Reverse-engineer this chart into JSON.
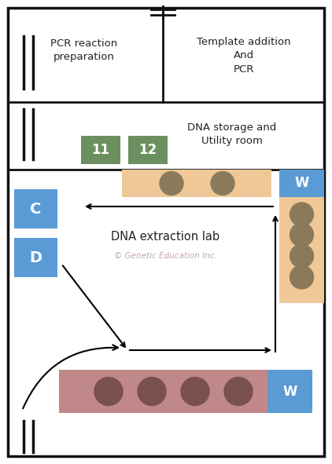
{
  "fig_width": 4.22,
  "fig_height": 5.91,
  "bg_color": "#ffffff",
  "green_box_color": "#6b8f5e",
  "blue_box_color": "#5b9bd5",
  "peach_bench_color": "#f0c898",
  "rose_bench_color": "#c08888",
  "circle_color_peach": "#8b7a5a",
  "circle_color_rose": "#7a5050",
  "text_watermark": "© Genetic Education Inc.",
  "text_watermark_color": "#c0a8a8",
  "label_C": "C",
  "label_D": "D",
  "label_W": "W",
  "label_11": "11",
  "label_12": "12",
  "label_pcr_prep": "PCR reaction\npreparation",
  "label_template": "Template addition\nAnd\nPCR",
  "label_storage": "DNA storage and\nUtility room",
  "label_extraction": "DNA extraction lab",
  "border_color": "#111111",
  "text_color": "#222222"
}
